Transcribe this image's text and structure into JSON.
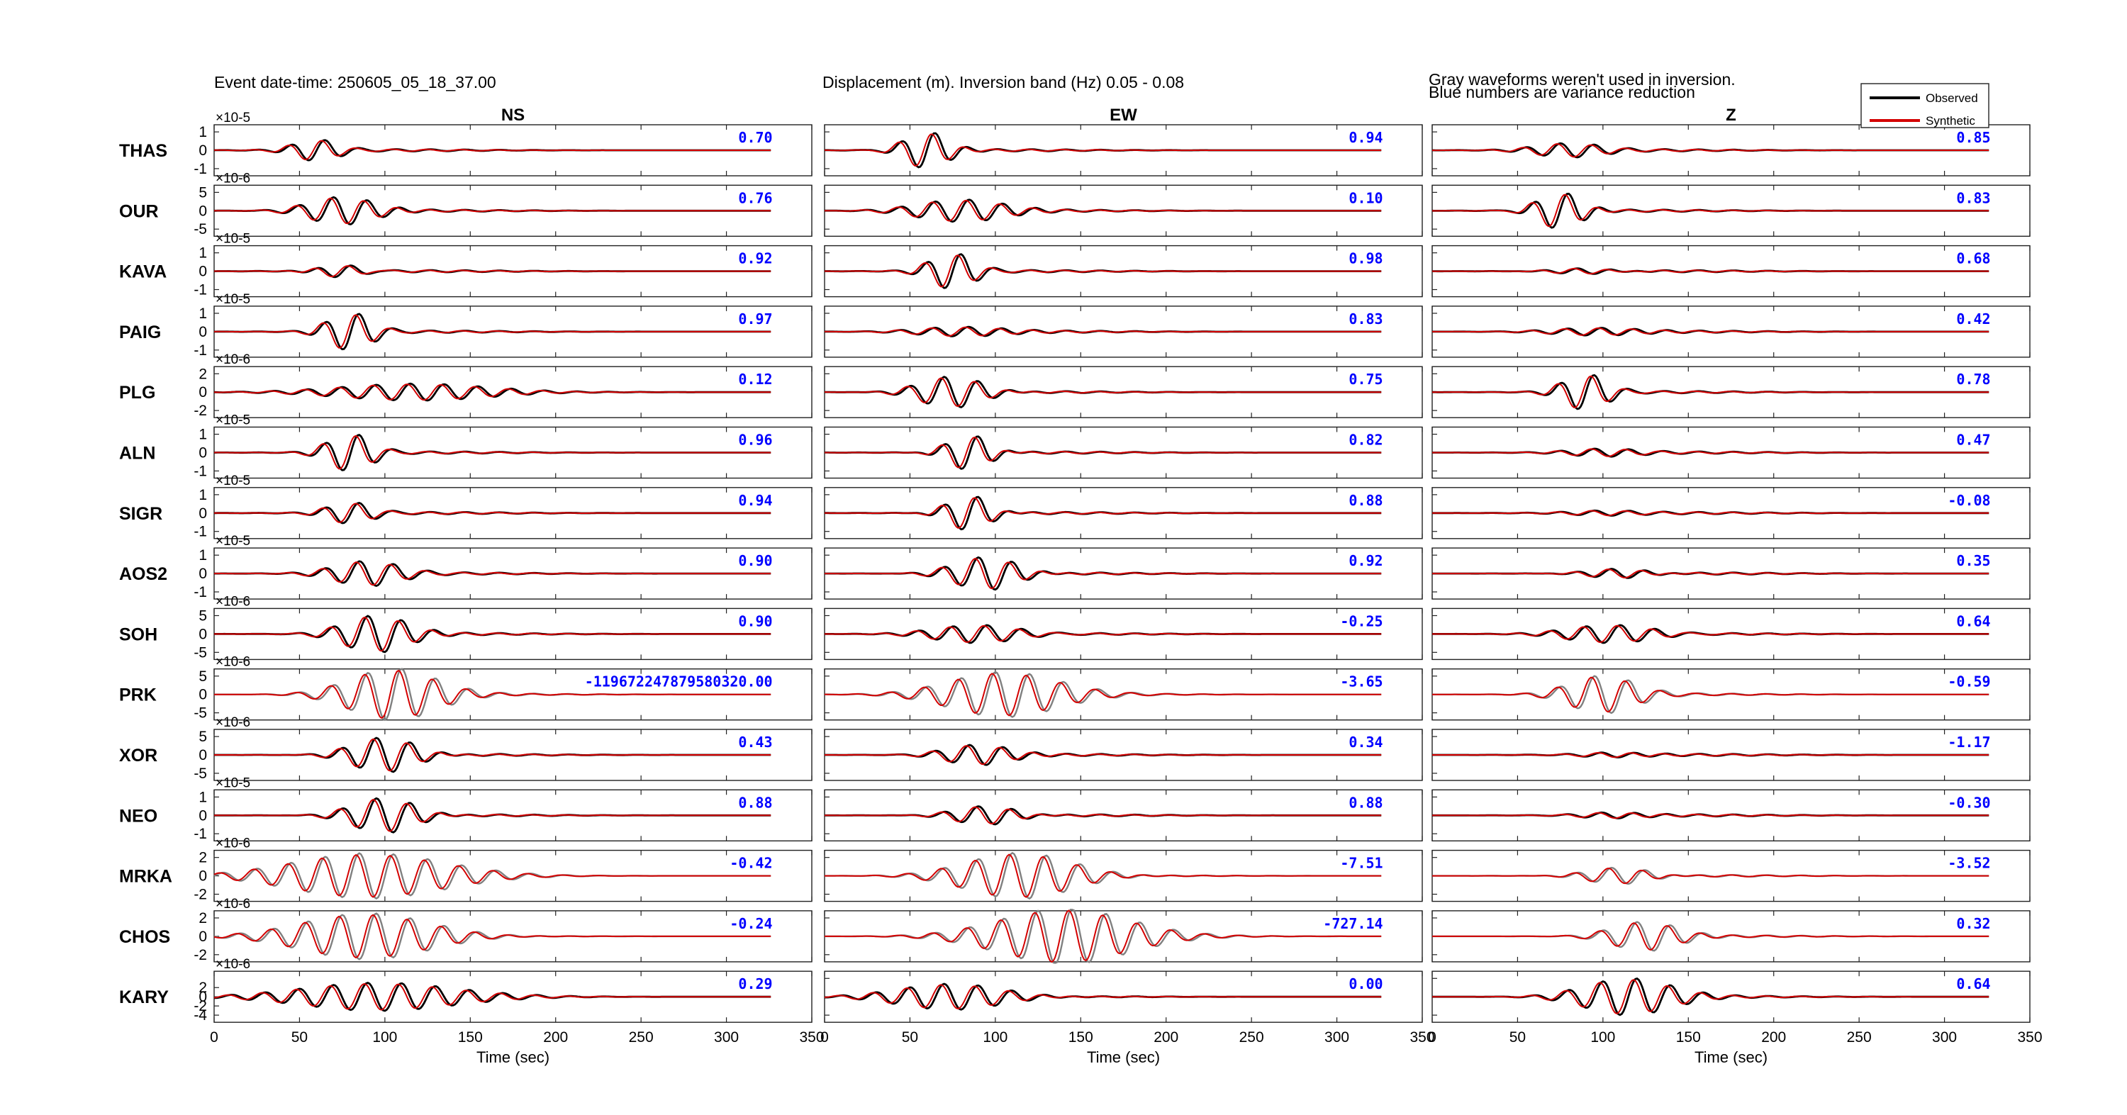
{
  "header": {
    "event": "Event date-time: 250605_05_18_37.00",
    "band": "Displacement (m).  Inversion band (Hz)  0.05 - 0.08",
    "note_line1": "Gray waveforms weren't used in inversion.",
    "note_line2": "Blue numbers are variance reduction"
  },
  "legend": {
    "observed": "Observed",
    "synthetic": "Synthetic"
  },
  "colors": {
    "observed": "#000000",
    "synthetic": "#d40000",
    "unused": "#808080",
    "vr": "#0000ff"
  },
  "chart_data": {
    "type": "line",
    "columns": [
      "NS",
      "EW",
      "Z"
    ],
    "xlabel": "Time (sec)",
    "xlim": [
      0,
      350
    ],
    "xticks": [
      "0",
      "50",
      "100",
      "150",
      "200",
      "250",
      "300",
      "350"
    ],
    "stations": [
      {
        "name": "THAS",
        "yticks": [
          "1",
          "0",
          "-1"
        ],
        "exponent": "×10-5",
        "vr": [
          "0.70",
          "0.94",
          "0.85"
        ],
        "used": [
          true,
          true,
          true
        ],
        "amp": [
          0.55,
          1.0,
          0.35
        ],
        "t0": [
          40,
          40,
          50
        ],
        "cyc": [
          2,
          2,
          3
        ]
      },
      {
        "name": "OUR",
        "yticks": [
          "5",
          "0",
          "-5"
        ],
        "exponent": "×10-6",
        "vr": [
          "0.76",
          "0.10",
          "0.83"
        ],
        "used": [
          true,
          true,
          true
        ],
        "amp": [
          0.75,
          0.6,
          1.0
        ],
        "t0": [
          45,
          40,
          55
        ],
        "cyc": [
          3,
          4,
          2
        ]
      },
      {
        "name": "KAVA",
        "yticks": [
          "1",
          "0",
          "-1"
        ],
        "exponent": "×10-5",
        "vr": [
          "0.92",
          "0.98",
          "0.68"
        ],
        "used": [
          true,
          true,
          true
        ],
        "amp": [
          0.35,
          0.95,
          0.2
        ],
        "t0": [
          55,
          55,
          60
        ],
        "cyc": [
          2,
          2,
          3
        ]
      },
      {
        "name": "PAIG",
        "yticks": [
          "1",
          "0",
          "-1"
        ],
        "exponent": "×10-5",
        "vr": [
          "0.97",
          "0.83",
          "0.42"
        ],
        "used": [
          true,
          true,
          true
        ],
        "amp": [
          1.0,
          0.25,
          0.2
        ],
        "t0": [
          60,
          40,
          55
        ],
        "cyc": [
          2,
          4,
          4
        ]
      },
      {
        "name": "PLG",
        "yticks": [
          "2",
          "0",
          "-2"
        ],
        "exponent": "×10-6",
        "vr": [
          "0.12",
          "0.75",
          "0.78"
        ],
        "used": [
          true,
          true,
          true
        ],
        "amp": [
          0.5,
          0.9,
          0.95
        ],
        "t0": [
          50,
          45,
          70
        ],
        "cyc": [
          7,
          3,
          2
        ]
      },
      {
        "name": "ALN",
        "yticks": [
          "1",
          "0",
          "-1"
        ],
        "exponent": "×10-5",
        "vr": [
          "0.96",
          "0.82",
          "0.47"
        ],
        "used": [
          true,
          true,
          true
        ],
        "amp": [
          1.0,
          1.0,
          0.18
        ],
        "t0": [
          60,
          65,
          70
        ],
        "cyc": [
          2,
          2,
          3
        ]
      },
      {
        "name": "SIGR",
        "yticks": [
          "1",
          "0",
          "-1"
        ],
        "exponent": "×10-5",
        "vr": [
          "0.94",
          "0.88",
          "-0.08"
        ],
        "used": [
          true,
          true,
          true
        ],
        "amp": [
          0.55,
          1.0,
          0.1
        ],
        "t0": [
          60,
          65,
          70
        ],
        "cyc": [
          2,
          2,
          3
        ]
      },
      {
        "name": "AOS2",
        "yticks": [
          "1",
          "0",
          "-1"
        ],
        "exponent": "×10-5",
        "vr": [
          "0.90",
          "0.92",
          "0.35"
        ],
        "used": [
          true,
          true,
          true
        ],
        "amp": [
          0.65,
          0.95,
          0.3
        ],
        "t0": [
          60,
          65,
          80
        ],
        "cyc": [
          3,
          3,
          3
        ]
      },
      {
        "name": "SOH",
        "yticks": [
          "5",
          "0",
          "-5"
        ],
        "exponent": "×10-6",
        "vr": [
          "0.90",
          "-0.25",
          "0.64"
        ],
        "used": [
          true,
          true,
          true
        ],
        "amp": [
          1.0,
          0.5,
          0.5
        ],
        "t0": [
          65,
          50,
          65
        ],
        "cyc": [
          3,
          4,
          4
        ]
      },
      {
        "name": "PRK",
        "yticks": [
          "5",
          "0",
          "-5"
        ],
        "exponent": "×10-6",
        "vr": [
          "-119672247879580320.00",
          "-3.65",
          "-0.59"
        ],
        "used": [
          false,
          false,
          false
        ],
        "amp": [
          1.4,
          1.2,
          1.0
        ],
        "t0": [
          65,
          55,
          70
        ],
        "cyc": [
          4,
          5,
          3
        ]
      },
      {
        "name": "XOR",
        "yticks": [
          "5",
          "0",
          "-5"
        ],
        "exponent": "×10-6",
        "vr": [
          "0.43",
          "0.34",
          "-1.17"
        ],
        "used": [
          true,
          true,
          true
        ],
        "amp": [
          1.0,
          0.55,
          0.12
        ],
        "t0": [
          70,
          60,
          75
        ],
        "cyc": [
          3,
          3,
          3
        ]
      },
      {
        "name": "NEO",
        "yticks": [
          "1",
          "0",
          "-1"
        ],
        "exponent": "×10-5",
        "vr": [
          "0.88",
          "0.88",
          "-0.30"
        ],
        "used": [
          true,
          true,
          true
        ],
        "amp": [
          1.0,
          0.55,
          0.15
        ],
        "t0": [
          70,
          65,
          75
        ],
        "cyc": [
          3,
          3,
          3
        ]
      },
      {
        "name": "MRKA",
        "yticks": [
          "2",
          "0",
          "-2"
        ],
        "exponent": "×10-6",
        "vr": [
          "-0.42",
          "-7.51",
          "-3.52"
        ],
        "used": [
          false,
          false,
          false
        ],
        "amp": [
          1.2,
          1.3,
          0.5
        ],
        "t0": [
          20,
          65,
          80
        ],
        "cyc": [
          7,
          5,
          3
        ]
      },
      {
        "name": "CHOS",
        "yticks": [
          "2",
          "0",
          "-2"
        ],
        "exponent": "×10-6",
        "vr": [
          "-0.24",
          "-727.14",
          "0.32"
        ],
        "used": [
          false,
          false,
          false
        ],
        "amp": [
          1.3,
          1.5,
          0.8
        ],
        "t0": [
          30,
          80,
          95
        ],
        "cyc": [
          6,
          6,
          3
        ]
      },
      {
        "name": "KARY",
        "yticks": [
          "2",
          "0",
          "-2",
          "-4"
        ],
        "exponent": "×10-6",
        "vr": [
          "0.29",
          "0.00",
          "0.64"
        ],
        "used": [
          true,
          true,
          true
        ],
        "amp": [
          0.75,
          0.75,
          1.0
        ],
        "t0": [
          25,
          25,
          75
        ],
        "cyc": [
          7,
          5,
          4
        ]
      }
    ]
  }
}
